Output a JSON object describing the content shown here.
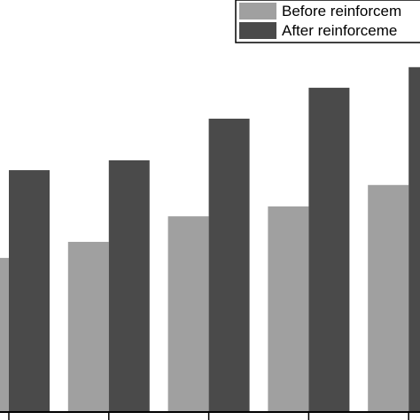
{
  "chart_data": {
    "type": "bar",
    "categories": [
      null,
      null,
      null,
      null,
      null
    ],
    "series": [
      {
        "name": "Before reinforcem",
        "color": "#a0a0a0",
        "values": [
          37.4,
          41.3,
          47.5,
          49.9,
          55.1
        ]
      },
      {
        "name": "After reinforceme",
        "color": "#4a4a4a",
        "values": [
          58.7,
          61.1,
          71.2,
          78.7,
          83.7
        ]
      }
    ],
    "ylim": [
      0,
      100
    ],
    "legend": "upper right"
  }
}
